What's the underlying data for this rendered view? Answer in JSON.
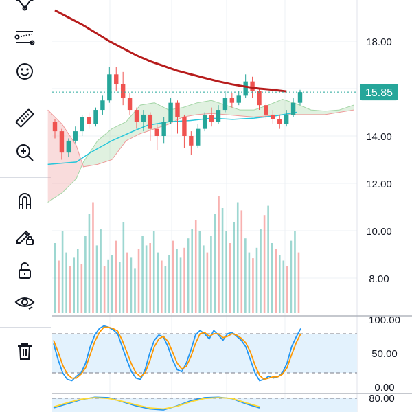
{
  "toolbar": {
    "items": [
      {
        "name": "pattern-tool-icon"
      },
      {
        "name": "prediction-measure-tool-icon"
      },
      {
        "name": "emoji-sticker-icon"
      },
      {
        "name": "ruler-measure-icon"
      },
      {
        "name": "zoom-in-icon"
      },
      {
        "name": "magnet-snap-icon"
      },
      {
        "name": "lock-drawings-pencil-icon"
      },
      {
        "name": "unlock-icon"
      },
      {
        "name": "visibility-eye-icon"
      },
      {
        "name": "trash-delete-icon"
      }
    ]
  },
  "colors": {
    "up": "#26a69a",
    "down": "#ef5350",
    "ma": "#b71c1c",
    "price_line": "#26a69a",
    "cloud_up": "#a5d6a7",
    "cloud_down": "#ef9a9a",
    "tenkan": "#26c6da",
    "stoch_k": "#2196f3",
    "stoch_d": "#ff9800",
    "stoch_band": "#e3f2fd",
    "grid": "#eef0f4",
    "axis_text": "#131722"
  },
  "chart_data": [
    {
      "type": "candlestick",
      "y_ticks": [
        "18.00",
        "14.00",
        "12.00",
        "10.00",
        "8.00"
      ],
      "ylim": [
        6.8,
        19.2
      ],
      "last_price_label": "15.85",
      "last_price": 15.85,
      "moving_average": [
        [
          0,
          19.3
        ],
        [
          2,
          19.0
        ],
        [
          4,
          18.7
        ],
        [
          6,
          18.35
        ],
        [
          8,
          18.0
        ],
        [
          10,
          17.7
        ],
        [
          12,
          17.4
        ],
        [
          14,
          17.15
        ],
        [
          16,
          16.95
        ],
        [
          18,
          16.75
        ],
        [
          20,
          16.6
        ],
        [
          22,
          16.45
        ],
        [
          24,
          16.3
        ],
        [
          26,
          16.18
        ],
        [
          28,
          16.08
        ],
        [
          30,
          16.0
        ],
        [
          32,
          15.95
        ],
        [
          34,
          15.88
        ]
      ],
      "tenkan_line": [
        [
          -1,
          12.8
        ],
        [
          3,
          12.9
        ],
        [
          5,
          13.3
        ],
        [
          8,
          13.8
        ],
        [
          11,
          14.2
        ],
        [
          13,
          14.45
        ],
        [
          16,
          14.6
        ],
        [
          19,
          14.65
        ],
        [
          22,
          14.75
        ],
        [
          25,
          14.7
        ],
        [
          28,
          14.75
        ],
        [
          31,
          14.85
        ],
        [
          34,
          15.0
        ]
      ],
      "cloud_span_a": [
        [
          -1,
          11.2
        ],
        [
          1,
          11.6
        ],
        [
          3,
          12.2
        ],
        [
          4,
          12.9
        ],
        [
          6,
          13.8
        ],
        [
          8,
          14.3
        ],
        [
          10,
          14.6
        ],
        [
          12,
          15.3
        ],
        [
          14,
          15.4
        ],
        [
          16,
          15.1
        ],
        [
          18,
          15.2
        ],
        [
          20,
          15.4
        ],
        [
          22,
          15.5
        ],
        [
          24,
          15.3
        ],
        [
          26,
          15.1
        ],
        [
          28,
          15.1
        ],
        [
          30,
          15.3
        ],
        [
          32,
          15.55
        ],
        [
          34,
          15.35
        ],
        [
          36,
          15.1
        ],
        [
          38,
          15.05
        ],
        [
          40,
          15.1
        ],
        [
          42,
          15.3
        ]
      ],
      "cloud_span_b": [
        [
          -1,
          15.1
        ],
        [
          1,
          14.5
        ],
        [
          3,
          13.6
        ],
        [
          4,
          12.7
        ],
        [
          6,
          12.8
        ],
        [
          8,
          13.0
        ],
        [
          10,
          13.8
        ],
        [
          12,
          14.1
        ],
        [
          14,
          14.3
        ],
        [
          16,
          14.5
        ],
        [
          18,
          14.8
        ],
        [
          20,
          14.9
        ],
        [
          22,
          14.95
        ],
        [
          24,
          14.9
        ],
        [
          26,
          14.85
        ],
        [
          28,
          14.8
        ],
        [
          30,
          14.85
        ],
        [
          32,
          14.9
        ],
        [
          34,
          14.9
        ],
        [
          36,
          14.9
        ],
        [
          38,
          14.9
        ],
        [
          40,
          15.0
        ],
        [
          42,
          15.1
        ]
      ],
      "candles": [
        [
          14.6,
          14.2,
          14.7,
          13.9
        ],
        [
          14.2,
          13.3,
          14.3,
          13.0
        ],
        [
          13.3,
          13.8,
          13.9,
          13.1
        ],
        [
          13.8,
          14.2,
          14.4,
          13.7
        ],
        [
          14.2,
          14.8,
          14.9,
          14.0
        ],
        [
          14.8,
          14.5,
          15.0,
          14.3
        ],
        [
          14.5,
          15.1,
          15.2,
          14.4
        ],
        [
          15.1,
          15.5,
          15.7,
          14.9
        ],
        [
          15.5,
          16.6,
          16.9,
          15.4
        ],
        [
          16.6,
          16.2,
          16.9,
          15.9
        ],
        [
          16.2,
          15.6,
          16.7,
          15.3
        ],
        [
          15.6,
          15.1,
          15.8,
          14.9
        ],
        [
          15.1,
          14.6,
          15.2,
          14.3
        ],
        [
          14.6,
          14.9,
          15.1,
          14.2
        ],
        [
          14.9,
          14.3,
          15.0,
          13.8
        ],
        [
          14.3,
          14.0,
          14.5,
          13.4
        ],
        [
          14.0,
          14.6,
          14.8,
          13.7
        ],
        [
          14.6,
          15.4,
          15.6,
          14.5
        ],
        [
          15.4,
          14.8,
          15.5,
          14.1
        ],
        [
          14.8,
          14.0,
          14.9,
          13.5
        ],
        [
          14.0,
          13.6,
          14.2,
          13.2
        ],
        [
          13.6,
          14.3,
          14.5,
          13.5
        ],
        [
          14.3,
          14.9,
          15.0,
          14.2
        ],
        [
          14.9,
          14.6,
          15.2,
          14.4
        ],
        [
          14.6,
          15.1,
          15.3,
          14.5
        ],
        [
          15.1,
          15.6,
          15.9,
          15.0
        ],
        [
          15.6,
          15.4,
          15.8,
          15.2
        ],
        [
          15.4,
          15.7,
          15.9,
          15.3
        ],
        [
          15.7,
          16.3,
          16.6,
          15.6
        ],
        [
          16.3,
          15.9,
          16.5,
          15.6
        ],
        [
          15.9,
          15.3,
          16.0,
          15.1
        ],
        [
          15.3,
          14.9,
          15.4,
          14.7
        ],
        [
          14.9,
          14.7,
          15.1,
          14.5
        ],
        [
          14.7,
          14.5,
          14.9,
          14.3
        ],
        [
          14.5,
          14.9,
          15.1,
          14.4
        ],
        [
          14.9,
          15.4,
          15.6,
          14.8
        ],
        [
          15.4,
          15.85,
          15.95,
          15.3
        ]
      ],
      "volumes": [
        60,
        45,
        70,
        52,
        40,
        48,
        55,
        42,
        66,
        85,
        95,
        58,
        72,
        40,
        46,
        50,
        62,
        44,
        78,
        52,
        48,
        38,
        55,
        66,
        58,
        60,
        70,
        52,
        45,
        40,
        50,
        62,
        55,
        48,
        56,
        64,
        72,
        80,
        70,
        58,
        52,
        66,
        85,
        100,
        90,
        70,
        60,
        78,
        95,
        88,
        64,
        52,
        47,
        56,
        72,
        84,
        92,
        60,
        55,
        50,
        45,
        40,
        62,
        70,
        52
      ]
    },
    {
      "type": "line",
      "title": "",
      "y_ticks": [
        "100.00",
        "50.00",
        "0.00"
      ],
      "ylim": [
        0,
        100
      ],
      "band": [
        20,
        80
      ],
      "series": [
        {
          "values": [
            65,
            40,
            20,
            10,
            8,
            15,
            20,
            35,
            60,
            78,
            88,
            92,
            90,
            86,
            80,
            60,
            40,
            22,
            12,
            10,
            25,
            50,
            70,
            78,
            75,
            60,
            40,
            25,
            22,
            35,
            55,
            78,
            85,
            80,
            72,
            85,
            78,
            70,
            80,
            82,
            76,
            70,
            60,
            40,
            20,
            8,
            10,
            15,
            12,
            14,
            20,
            35,
            60,
            75,
            88
          ]
        },
        {
          "values": [
            70,
            52,
            32,
            18,
            12,
            12,
            18,
            28,
            48,
            68,
            82,
            90,
            90,
            88,
            84,
            70,
            52,
            34,
            20,
            14,
            20,
            38,
            60,
            72,
            76,
            68,
            52,
            35,
            26,
            30,
            45,
            65,
            80,
            82,
            76,
            80,
            80,
            74,
            76,
            80,
            78,
            73,
            66,
            52,
            32,
            16,
            10,
            12,
            14,
            14,
            18,
            28,
            48,
            66,
            80
          ]
        }
      ]
    },
    {
      "type": "line",
      "title": "",
      "y_ticks": [
        "80.00"
      ],
      "series": [
        {
          "values": [
            20,
            40,
            60,
            72,
            70,
            50,
            30,
            15,
            10,
            30,
            55,
            70,
            72,
            65,
            40,
            20
          ]
        },
        {
          "values": [
            25,
            45,
            62,
            70,
            66,
            52,
            35,
            20,
            15,
            28,
            50,
            66,
            70,
            66,
            45,
            26
          ]
        }
      ]
    }
  ]
}
